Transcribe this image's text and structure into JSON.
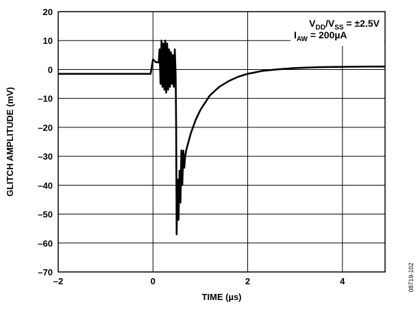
{
  "chart_data": {
    "type": "line",
    "title": "",
    "xlabel": "TIME (µs)",
    "ylabel": "GLITCH AMPLITUDE (mV)",
    "xlim": [
      -2,
      4.9
    ],
    "ylim": [
      -70,
      20
    ],
    "grid": true,
    "xticks": [
      -2,
      0,
      2,
      4
    ],
    "xtick_labels": [
      "–2",
      "0",
      "2",
      "4"
    ],
    "yticks": [
      20,
      10,
      0,
      -10,
      -20,
      -30,
      -40,
      -50,
      -60,
      -70
    ],
    "ytick_labels": [
      "20",
      "10",
      "0",
      "–10",
      "–20",
      "–30",
      "–40",
      "–50",
      "–60",
      "–70"
    ],
    "annotation": {
      "line1": {
        "v": "V",
        "dd": "DD",
        "slash": "/V",
        "ss": "SS",
        "rest": " = ±2.5V"
      },
      "line2": {
        "i": "I",
        "aw": "AW",
        "rest": " = 200µA"
      }
    },
    "figure_id": "08719-102",
    "series": [
      {
        "x": [
          -2.0,
          -1.5,
          -1.0,
          -0.5,
          -0.05,
          0.0,
          0.03,
          0.07,
          0.12,
          0.14,
          0.16,
          0.18,
          0.2,
          0.22,
          0.24,
          0.26,
          0.28,
          0.3,
          0.32,
          0.34,
          0.36,
          0.38,
          0.4,
          0.42,
          0.44,
          0.46,
          0.48,
          0.49,
          0.5,
          0.52,
          0.54,
          0.56,
          0.58,
          0.6,
          0.62,
          0.64,
          0.66,
          0.68,
          0.7,
          0.75,
          0.8,
          0.9,
          1.0,
          1.2,
          1.4,
          1.6,
          1.8,
          2.0,
          2.3,
          2.6,
          3.0,
          3.5,
          4.0,
          4.5,
          4.9
        ],
        "y": [
          -1.5,
          -1.5,
          -1.5,
          -1.5,
          -1.5,
          3.5,
          3.0,
          2.5,
          2.5,
          7.0,
          -5.0,
          10.0,
          -6.0,
          9.0,
          -7.0,
          10.0,
          -8.0,
          9.0,
          -7.0,
          7.0,
          -6.0,
          6.0,
          -5.0,
          5.0,
          -6.0,
          7.0,
          -2.0,
          -20.0,
          -57.0,
          -38.0,
          -52.0,
          -35.0,
          -46.0,
          -28.0,
          -40.0,
          -28.0,
          -34.0,
          -30.0,
          -28.0,
          -25.0,
          -22.0,
          -17.5,
          -14.0,
          -9.0,
          -6.0,
          -4.0,
          -2.5,
          -1.5,
          -0.5,
          0.0,
          0.5,
          0.8,
          0.9,
          1.0,
          1.0
        ]
      }
    ]
  }
}
